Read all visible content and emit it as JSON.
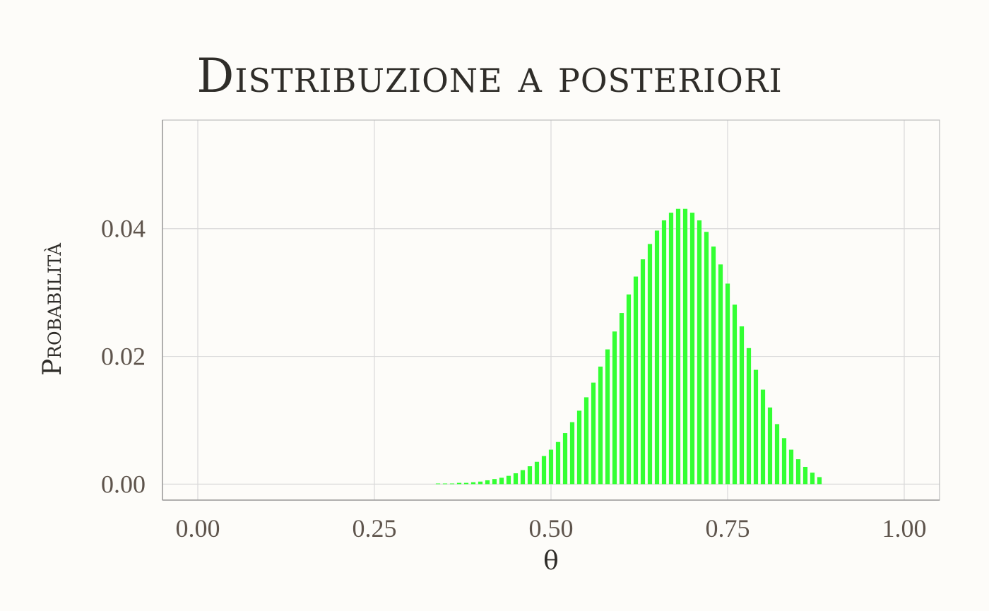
{
  "chart_data": {
    "type": "bar",
    "title": "Distribuzione a posteriori",
    "xlabel": "θ",
    "ylabel": "Probabilità",
    "xlim": [
      -0.05,
      1.05
    ],
    "ylim": [
      -0.0025,
      0.057
    ],
    "x_ticks": [
      0,
      0.25,
      0.5,
      0.75,
      1
    ],
    "x_tick_labels": [
      "0.00",
      "0.25",
      "0.50",
      "0.75",
      "1.00"
    ],
    "y_ticks": [
      0,
      0.02,
      0.04
    ],
    "y_tick_labels": [
      "0.00",
      "0.02",
      "0.04"
    ],
    "grid": true,
    "bar_color": "#33ff33",
    "x": [
      0.34,
      0.35,
      0.36,
      0.37,
      0.38,
      0.39,
      0.4,
      0.41,
      0.42,
      0.43,
      0.44,
      0.45,
      0.46,
      0.47,
      0.48,
      0.49,
      0.5,
      0.51,
      0.52,
      0.53,
      0.54,
      0.55,
      0.56,
      0.57,
      0.58,
      0.59,
      0.6,
      0.61,
      0.62,
      0.63,
      0.64,
      0.65,
      0.66,
      0.67,
      0.68,
      0.69,
      0.7,
      0.71,
      0.72,
      0.73,
      0.74,
      0.75,
      0.76,
      0.77,
      0.78,
      0.79,
      0.8,
      0.81,
      0.82,
      0.83,
      0.84,
      0.85,
      0.86,
      0.87,
      0.88
    ],
    "values": [
      0.0001,
      0.0001,
      0.0001,
      0.0002,
      0.0002,
      0.0003,
      0.0004,
      0.0006,
      0.0008,
      0.001,
      0.0013,
      0.0017,
      0.0022,
      0.0028,
      0.0035,
      0.0044,
      0.0054,
      0.0066,
      0.008,
      0.0097,
      0.0115,
      0.0136,
      0.0159,
      0.0184,
      0.0211,
      0.0239,
      0.0268,
      0.0297,
      0.0325,
      0.0352,
      0.0376,
      0.0397,
      0.0413,
      0.0425,
      0.0431,
      0.0431,
      0.0425,
      0.0413,
      0.0395,
      0.0372,
      0.0344,
      0.0314,
      0.0281,
      0.0247,
      0.0213,
      0.0179,
      0.0148,
      0.012,
      0.0094,
      0.0072,
      0.0054,
      0.0039,
      0.0027,
      0.0018,
      0.0011
    ]
  },
  "colors": {
    "background": "#fdfcf9",
    "grid": "#d9d9d9",
    "panel_border": "#bdbdbd",
    "axis_line": "#9a9a9a"
  }
}
